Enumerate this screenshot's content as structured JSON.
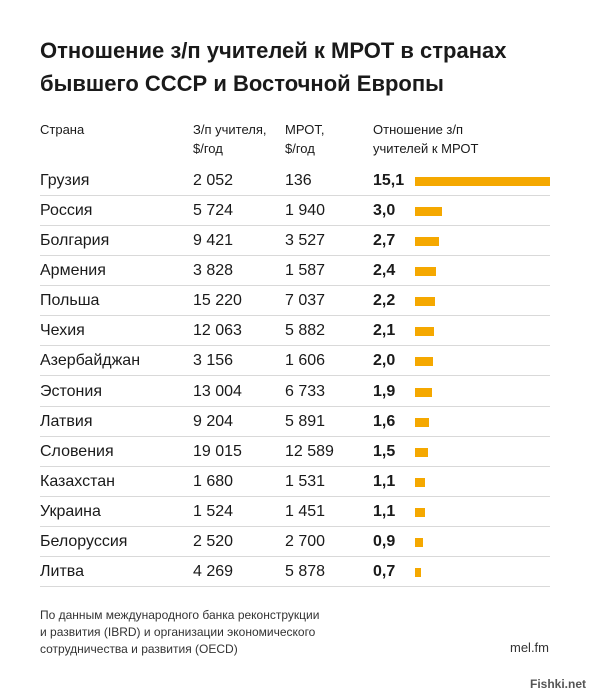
{
  "title_lines": [
    "Отношение з/п учителей к МРОТ в странах",
    "бывшего СССР и Восточной Европы"
  ],
  "headers": {
    "country": "Страна",
    "salary": [
      "З/п учителя,",
      "$/год"
    ],
    "mrot": [
      "МРОТ,",
      "$/год"
    ],
    "ratio": [
      "Отношение з/п",
      "учителей к МРОТ"
    ]
  },
  "colors": {
    "bar": "#f5a800",
    "divider": "#d9d9d9"
  },
  "chart_data": {
    "type": "table",
    "columns": [
      "Страна",
      "З/п учителя, $/год",
      "МРОТ, $/год",
      "Отношение з/п учителей к МРОТ"
    ],
    "rows": [
      {
        "country": "Грузия",
        "salary": "2 052",
        "mrot": "136",
        "ratio": "15,1",
        "ratio_value": 15.1
      },
      {
        "country": "Россия",
        "salary": "5 724",
        "mrot": "1 940",
        "ratio": "3,0",
        "ratio_value": 3.0
      },
      {
        "country": "Болгария",
        "salary": "9 421",
        "mrot": "3 527",
        "ratio": "2,7",
        "ratio_value": 2.7
      },
      {
        "country": "Армения",
        "salary": "3 828",
        "mrot": "1 587",
        "ratio": "2,4",
        "ratio_value": 2.4
      },
      {
        "country": "Польша",
        "salary": "15 220",
        "mrot": "7 037",
        "ratio": "2,2",
        "ratio_value": 2.2
      },
      {
        "country": "Чехия",
        "salary": "12 063",
        "mrot": "5 882",
        "ratio": "2,1",
        "ratio_value": 2.1
      },
      {
        "country": "Азербайджан",
        "salary": "3 156",
        "mrot": "1 606",
        "ratio": "2,0",
        "ratio_value": 2.0
      },
      {
        "country": "Эстония",
        "salary": "13 004",
        "mrot": "6 733",
        "ratio": "1,9",
        "ratio_value": 1.9
      },
      {
        "country": "Латвия",
        "salary": "9 204",
        "mrot": "5 891",
        "ratio": "1,6",
        "ratio_value": 1.6
      },
      {
        "country": "Словения",
        "salary": "19 015",
        "mrot": "12 589",
        "ratio": "1,5",
        "ratio_value": 1.5
      },
      {
        "country": "Казахстан",
        "salary": "1 680",
        "mrot": "1 531",
        "ratio": "1,1",
        "ratio_value": 1.1
      },
      {
        "country": "Украина",
        "salary": "1 524",
        "mrot": "1 451",
        "ratio": "1,1",
        "ratio_value": 1.1
      },
      {
        "country": "Белоруссия",
        "salary": "2 520",
        "mrot": "2 700",
        "ratio": "0,9",
        "ratio_value": 0.9
      },
      {
        "country": "Литва",
        "salary": "4 269",
        "mrot": "5 878",
        "ratio": "0,7",
        "ratio_value": 0.7
      }
    ]
  },
  "footnote_lines": [
    "По данным международного банка реконструкции",
    "и развития (IBRD) и организации экономического",
    "сотрудничества и развития (OECD)"
  ],
  "source": "mel.fm",
  "watermark": "Fishki.net"
}
